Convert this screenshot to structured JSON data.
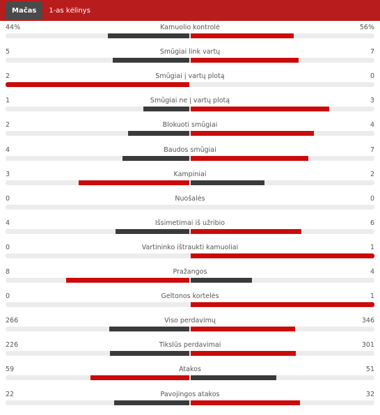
{
  "tabs": [
    {
      "label": "Mačas",
      "active": true
    },
    {
      "label": "1-as kėlinys",
      "active": false
    }
  ],
  "colors": {
    "header": "#b91c1c",
    "leader": "#cc0a0a",
    "trailer": "#3a3a3a",
    "track": "#ececec"
  },
  "stats": [
    {
      "label": "Kamuolio kontrolė",
      "home_text": "44%",
      "away_text": "56%",
      "home": 44,
      "away": 56
    },
    {
      "label": "Smūgiai link vartų",
      "home_text": "5",
      "away_text": "7",
      "home": 5,
      "away": 7
    },
    {
      "label": "Smūgiai į vartų plotą",
      "home_text": "2",
      "away_text": "0",
      "home": 2,
      "away": 0
    },
    {
      "label": "Smūgiai ne į vartų plotą",
      "home_text": "1",
      "away_text": "3",
      "home": 1,
      "away": 3
    },
    {
      "label": "Blokuoti smūgiai",
      "home_text": "2",
      "away_text": "4",
      "home": 2,
      "away": 4
    },
    {
      "label": "Baudos smūgiai",
      "home_text": "4",
      "away_text": "7",
      "home": 4,
      "away": 7
    },
    {
      "label": "Kampiniai",
      "home_text": "3",
      "away_text": "2",
      "home": 3,
      "away": 2
    },
    {
      "label": "Nuošalės",
      "home_text": "0",
      "away_text": "0",
      "home": 0,
      "away": 0
    },
    {
      "label": "Išsimetimai iš užribio",
      "home_text": "4",
      "away_text": "6",
      "home": 4,
      "away": 6
    },
    {
      "label": "Vartininko ištraukti kamuoliai",
      "home_text": "0",
      "away_text": "1",
      "home": 0,
      "away": 1
    },
    {
      "label": "Pražangos",
      "home_text": "8",
      "away_text": "4",
      "home": 8,
      "away": 4
    },
    {
      "label": "Geltonos kortelės",
      "home_text": "0",
      "away_text": "1",
      "home": 0,
      "away": 1
    },
    {
      "label": "Viso perdavimų",
      "home_text": "266",
      "away_text": "346",
      "home": 266,
      "away": 346
    },
    {
      "label": "Tikslūs perdavimai",
      "home_text": "226",
      "away_text": "301",
      "home": 226,
      "away": 301
    },
    {
      "label": "Atakos",
      "home_text": "59",
      "away_text": "51",
      "home": 59,
      "away": 51
    },
    {
      "label": "Pavojingos atakos",
      "home_text": "22",
      "away_text": "32",
      "home": 22,
      "away": 32
    }
  ]
}
